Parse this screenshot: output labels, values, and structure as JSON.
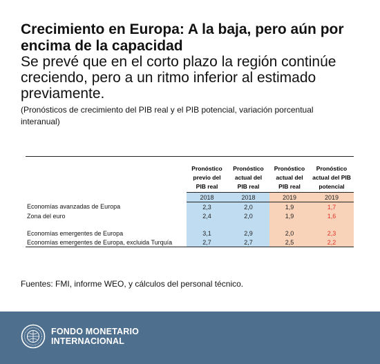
{
  "title": "Crecimiento en Europa: A la baja, pero aún por encima de la capacidad",
  "subtitle": "Se prevé que en el corto plazo la región continúe creciendo, pero a un ritmo inferior al estimado previamente.",
  "note": "(Pronósticos de crecimiento del PIB real y el PIB potencial, variación porcentual interanual)",
  "source": "Fuentes: FMI, informe WEO, y cálculos del personal técnico.",
  "footer": {
    "org_line1": "FONDO MONETARIO",
    "org_line2": "INTERNACIONAL",
    "logo_icon": "imf-seal-icon"
  },
  "colors": {
    "highlight_2018": "#bfdcf1",
    "highlight_2019": "#f8d3b9",
    "potential_text": "#e0332a",
    "footer_bg": "#4f6f8f"
  },
  "chart_data": {
    "type": "table",
    "columns": [
      {
        "header": "Pronóstico previo del PIB real",
        "year": "2018"
      },
      {
        "header": "Pronóstico actual del PIB real",
        "year": "2018"
      },
      {
        "header": "Pronóstico actual del PIB real",
        "year": "2019"
      },
      {
        "header": "Pronóstico actual del PIB potencial",
        "year": "2019"
      }
    ],
    "header_lines": [
      [
        "Pronóstico",
        "previo del",
        "PIB real"
      ],
      [
        "Pronóstico",
        "actual del",
        "PIB real"
      ],
      [
        "Pronóstico",
        "actual del",
        "PIB real"
      ],
      [
        "Pronóstico",
        "actual del PIB",
        "potencial"
      ]
    ],
    "rows": [
      {
        "label": "Economías avanzadas de Europa",
        "values": [
          "2,3",
          "2,0",
          "1,9",
          "1,7"
        ]
      },
      {
        "label": "Zona del euro",
        "values": [
          "2,4",
          "2,0",
          "1,9",
          "1,6"
        ]
      },
      {
        "label": "Economías emergentes de Europa",
        "values": [
          "3,1",
          "2,9",
          "2,0",
          "2,3"
        ]
      },
      {
        "label": "Economías emergentes de Europa, excluida Turquía",
        "values": [
          "2,7",
          "2,7",
          "2,5",
          "2,2"
        ]
      }
    ]
  }
}
